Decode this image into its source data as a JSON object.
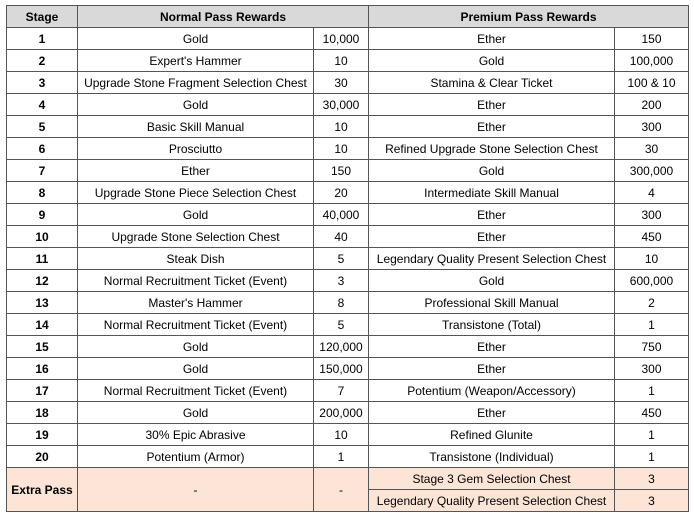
{
  "table": {
    "header": [
      "Stage",
      "Normal Pass Rewards",
      "Premium Pass Rewards"
    ],
    "rows": [
      [
        "1",
        "Gold",
        "10,000",
        "Ether",
        "150"
      ],
      [
        "2",
        "Expert's Hammer",
        "10",
        "Gold",
        "100,000"
      ],
      [
        "3",
        "Upgrade Stone Fragment Selection Chest",
        "30",
        "Stamina & Clear Ticket",
        "100 & 10"
      ],
      [
        "4",
        "Gold",
        "30,000",
        "Ether",
        "200"
      ],
      [
        "5",
        "Basic Skill Manual",
        "10",
        "Ether",
        "300"
      ],
      [
        "6",
        "Prosciutto",
        "10",
        "Refined Upgrade Stone Selection Chest",
        "30"
      ],
      [
        "7",
        "Ether",
        "150",
        "Gold",
        "300,000"
      ],
      [
        "8",
        "Upgrade Stone Piece Selection Chest",
        "20",
        "Intermediate Skill Manual",
        "4"
      ],
      [
        "9",
        "Gold",
        "40,000",
        "Ether",
        "300"
      ],
      [
        "10",
        "Upgrade Stone Selection Chest",
        "40",
        "Ether",
        "450"
      ],
      [
        "11",
        "Steak Dish",
        "5",
        "Legendary Quality Present Selection Chest",
        "10"
      ],
      [
        "12",
        "Normal Recruitment Ticket (Event)",
        "3",
        "Gold",
        "600,000"
      ],
      [
        "13",
        "Master's Hammer",
        "8",
        "Professional Skill Manual",
        "2"
      ],
      [
        "14",
        "Normal Recruitment Ticket (Event)",
        "5",
        "Transistone (Total)",
        "1"
      ],
      [
        "15",
        "Gold",
        "120,000",
        "Ether",
        "750"
      ],
      [
        "16",
        "Gold",
        "150,000",
        "Ether",
        "300"
      ],
      [
        "17",
        "Normal Recruitment Ticket (Event)",
        "7",
        "Potentium (Weapon/Accessory)",
        "1"
      ],
      [
        "18",
        "Gold",
        "200,000",
        "Ether",
        "450"
      ],
      [
        "19",
        "30% Epic Abrasive",
        "10",
        "Refined Glunite",
        "1"
      ],
      [
        "20",
        "Potentium (Armor)",
        "1",
        "Transistone (Individual)",
        "1"
      ]
    ],
    "extra": {
      "label": "Extra Pass",
      "normal_item": "-",
      "normal_qty": "-",
      "premium": [
        [
          "Stage 3 Gem Selection Chest",
          "3"
        ],
        [
          "Legendary Quality Present Selection Chest",
          "3"
        ]
      ]
    }
  }
}
